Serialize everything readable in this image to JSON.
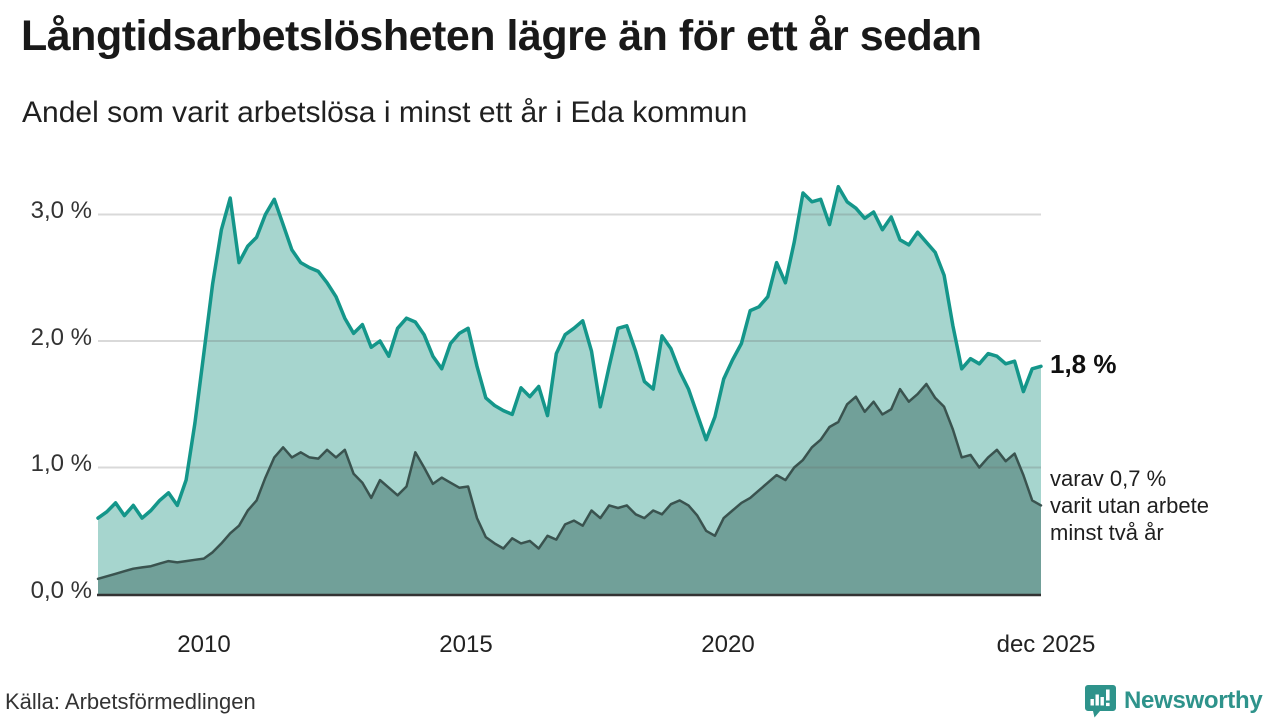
{
  "header": {
    "title": "Långtidsarbetslösheten lägre än för ett år sedan",
    "subtitle": "Andel som varit arbetslösa i minst ett år i Eda kommun"
  },
  "chart_data": {
    "type": "area",
    "title": "Långtidsarbetslösheten lägre än för ett år sedan",
    "subtitle": "Andel som varit arbetslösa i minst ett år i Eda kommun",
    "x_start_year": 2008,
    "x_end_year": 2026,
    "points_per_year": 6,
    "ylim": [
      0,
      3.3
    ],
    "grid": true,
    "unit": "%",
    "y_ticks": [
      {
        "value": 3.0,
        "label": "3,0 %"
      },
      {
        "value": 2.0,
        "label": "2,0 %"
      },
      {
        "value": 1.0,
        "label": "1,0 %"
      },
      {
        "value": 0.0,
        "label": "0,0 %"
      }
    ],
    "x_ticks": [
      {
        "year": 2010,
        "label": "2010"
      },
      {
        "year": 2015,
        "label": "2015"
      },
      {
        "year": 2020,
        "label": "2020"
      },
      {
        "year": 2025.92,
        "label": "dec 2025"
      }
    ],
    "series": [
      {
        "name": "Andel som varit arbetslösa minst ett år",
        "line_color": "#14968a",
        "fill_color": "#a6d5ce",
        "line_width": 3.5,
        "last_value": 1.8,
        "values": [
          0.6,
          0.65,
          0.72,
          0.62,
          0.7,
          0.6,
          0.66,
          0.74,
          0.8,
          0.7,
          0.9,
          1.35,
          1.9,
          2.45,
          2.88,
          3.13,
          2.62,
          2.75,
          2.82,
          3.0,
          3.12,
          2.92,
          2.72,
          2.62,
          2.58,
          2.55,
          2.46,
          2.35,
          2.18,
          2.06,
          2.13,
          1.95,
          2.0,
          1.88,
          2.1,
          2.18,
          2.15,
          2.05,
          1.88,
          1.78,
          1.98,
          2.06,
          2.1,
          1.8,
          1.55,
          1.49,
          1.45,
          1.42,
          1.63,
          1.56,
          1.64,
          1.41,
          1.9,
          2.05,
          2.1,
          2.16,
          1.92,
          1.48,
          1.8,
          2.1,
          2.12,
          1.92,
          1.68,
          1.62,
          2.04,
          1.94,
          1.76,
          1.62,
          1.42,
          1.22,
          1.4,
          1.7,
          1.85,
          1.98,
          2.24,
          2.27,
          2.35,
          2.62,
          2.46,
          2.78,
          3.17,
          3.1,
          3.12,
          2.92,
          3.22,
          3.1,
          3.05,
          2.97,
          3.02,
          2.88,
          2.98,
          2.8,
          2.76,
          2.86,
          2.78,
          2.7,
          2.52,
          2.12,
          1.78,
          1.86,
          1.82,
          1.9,
          1.88,
          1.82,
          1.84,
          1.6,
          1.78,
          1.8
        ]
      },
      {
        "name": "Andel som varit utan arbete minst två år",
        "line_color": "#3a534f",
        "fill_color": "#71a099",
        "line_width": 2.5,
        "last_value": 0.7,
        "values": [
          0.12,
          0.14,
          0.16,
          0.18,
          0.2,
          0.21,
          0.22,
          0.24,
          0.26,
          0.25,
          0.26,
          0.27,
          0.28,
          0.33,
          0.4,
          0.48,
          0.54,
          0.66,
          0.74,
          0.92,
          1.08,
          1.16,
          1.08,
          1.12,
          1.08,
          1.07,
          1.14,
          1.08,
          1.14,
          0.95,
          0.88,
          0.76,
          0.9,
          0.84,
          0.78,
          0.85,
          1.12,
          1.0,
          0.87,
          0.92,
          0.88,
          0.84,
          0.85,
          0.6,
          0.45,
          0.4,
          0.36,
          0.44,
          0.4,
          0.42,
          0.36,
          0.46,
          0.43,
          0.55,
          0.58,
          0.54,
          0.66,
          0.6,
          0.7,
          0.68,
          0.7,
          0.63,
          0.6,
          0.66,
          0.63,
          0.71,
          0.74,
          0.7,
          0.62,
          0.5,
          0.46,
          0.6,
          0.66,
          0.72,
          0.76,
          0.82,
          0.88,
          0.94,
          0.9,
          1.0,
          1.06,
          1.16,
          1.22,
          1.32,
          1.36,
          1.5,
          1.56,
          1.44,
          1.52,
          1.42,
          1.46,
          1.62,
          1.52,
          1.58,
          1.66,
          1.55,
          1.48,
          1.3,
          1.08,
          1.1,
          1.0,
          1.08,
          1.14,
          1.05,
          1.11,
          0.94,
          0.74,
          0.7
        ]
      }
    ],
    "annotations": {
      "main_end_label": "1,8 %",
      "secondary_note_lines": [
        "varav 0,7 %",
        "varit utan arbete",
        "minst två år"
      ]
    },
    "legend_position": "none"
  },
  "footer": {
    "source": "Källa: Arbetsförmedlingen",
    "brand": "Newsworthy"
  },
  "colors": {
    "accent_teal": "#14968a",
    "fill_light": "#a6d5ce",
    "fill_dark": "#71a099",
    "line_dark": "#3a534f",
    "grid": "#d8d8d8",
    "axis": "#333333",
    "brand_teal": "#2e938b"
  }
}
